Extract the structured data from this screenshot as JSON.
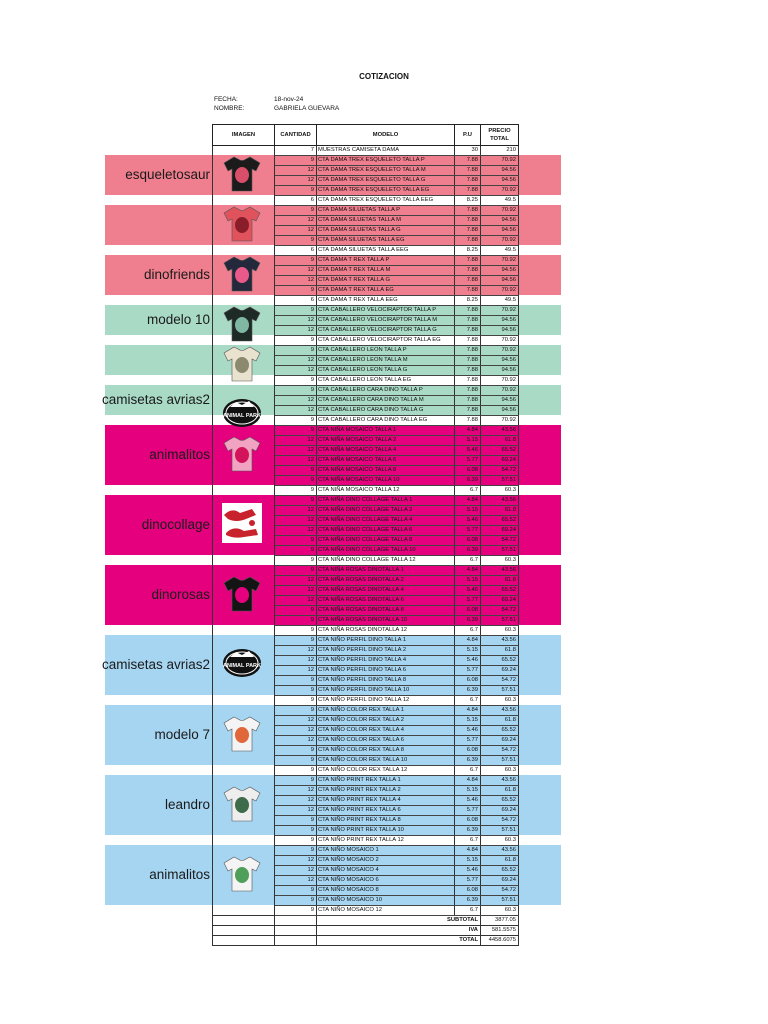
{
  "document": {
    "title": "COTIZACION",
    "fecha_label": "FECHA:",
    "fecha_value": "18-nov-24",
    "nombre_label": "NOMBRE:",
    "nombre_value": "GABRIELA GUEVARA"
  },
  "table": {
    "headers": [
      "IMAGEN",
      "CANTIDAD",
      "MODELO",
      "P.U",
      "PRECIO TOTAL"
    ],
    "rows": [
      {
        "qty": "7",
        "model": "MUESTRAS CAMISETA DAMA",
        "pu": "30",
        "total": "210"
      },
      {
        "qty": "9",
        "model": "CTA DAMA TREX ESQUELETO TALLA P",
        "pu": "7.88",
        "total": "70.92"
      },
      {
        "qty": "12",
        "model": "CTA DAMA TREX ESQUELETO TALLA M",
        "pu": "7.88",
        "total": "94.56"
      },
      {
        "qty": "12",
        "model": "CTA DAMA TREX ESQUELETO TALLA G",
        "pu": "7.88",
        "total": "94.56"
      },
      {
        "qty": "9",
        "model": "CTA DAMA TREX ESQUELETO TALLA EG",
        "pu": "7.88",
        "total": "70.92"
      },
      {
        "qty": "6",
        "model": "CTA DAMA TREX ESQUELETO TALLA EEG",
        "pu": "8.25",
        "total": "49.5"
      },
      {
        "qty": "9",
        "model": "CTA DAMA SILUETAS TALLA P",
        "pu": "7.88",
        "total": "70.92"
      },
      {
        "qty": "12",
        "model": "CTA DAMA SILUETAS TALLA M",
        "pu": "7.88",
        "total": "94.56"
      },
      {
        "qty": "12",
        "model": "CTA DAMA SILUETAS TALLA G",
        "pu": "7.88",
        "total": "94.56"
      },
      {
        "qty": "9",
        "model": "CTA DAMA SILUETAS TALLA EG",
        "pu": "7.88",
        "total": "70.92"
      },
      {
        "qty": "6",
        "model": "CTA DAMA SILUETAS TALLA EEG",
        "pu": "8.25",
        "total": "49.5"
      },
      {
        "qty": "9",
        "model": "CTA DAMA T REX TALLA P",
        "pu": "7.88",
        "total": "70.92"
      },
      {
        "qty": "12",
        "model": "CTA DAMA T REX TALLA M",
        "pu": "7.88",
        "total": "94.56"
      },
      {
        "qty": "12",
        "model": "CTA DAMA T REX TALLA G",
        "pu": "7.88",
        "total": "94.56"
      },
      {
        "qty": "9",
        "model": "CTA DAMA T REX TALLA EG",
        "pu": "7.88",
        "total": "70.92"
      },
      {
        "qty": "6",
        "model": "CTA DAMA T REX TALLA EEG",
        "pu": "8.25",
        "total": "49.5"
      },
      {
        "qty": "9",
        "model": "CTA CABALLERO VELOCIRAPTOR TALLA P",
        "pu": "7.88",
        "total": "70.92"
      },
      {
        "qty": "12",
        "model": "CTA CABALLERO VELOCIRAPTOR TALLA M",
        "pu": "7.88",
        "total": "94.56"
      },
      {
        "qty": "12",
        "model": "CTA CABALLERO VELOCIRAPTOR TALLA G",
        "pu": "7.88",
        "total": "94.56"
      },
      {
        "qty": "9",
        "model": "CTA CABALLERO VELOCIRAPTOR TALLA EG",
        "pu": "7.88",
        "total": "70.92"
      },
      {
        "qty": "9",
        "model": "CTA CABALLERO LEON TALLA P",
        "pu": "7.88",
        "total": "70.92"
      },
      {
        "qty": "12",
        "model": "CTA CABALLERO LEON TALLA M",
        "pu": "7.88",
        "total": "94.56"
      },
      {
        "qty": "12",
        "model": "CTA CABALLERO LEON TALLA G",
        "pu": "7.88",
        "total": "94.56"
      },
      {
        "qty": "9",
        "model": "CTA CABALLERO LEON TALLA EG",
        "pu": "7.88",
        "total": "70.92"
      },
      {
        "qty": "9",
        "model": "CTA CABALLERO CARA DINO TALLA P",
        "pu": "7.88",
        "total": "70.92"
      },
      {
        "qty": "12",
        "model": "CTA CABALLERO CARA DINO TALLA M",
        "pu": "7.88",
        "total": "94.56"
      },
      {
        "qty": "12",
        "model": "CTA CABALLERO CARA DINO TALLA G",
        "pu": "7.88",
        "total": "94.56"
      },
      {
        "qty": "9",
        "model": "CTA CABALLERO CARA DINO TALLA EG",
        "pu": "7.88",
        "total": "70.92"
      },
      {
        "qty": "9",
        "model": "CTA NIÑA MOSAICO TALLA 1",
        "pu": "4.84",
        "total": "43.56"
      },
      {
        "qty": "12",
        "model": "CTA NIÑA MOSAICO TALLA 2",
        "pu": "5.15",
        "total": "61.8"
      },
      {
        "qty": "12",
        "model": "CTA NIÑA MOSAICO TALLA 4",
        "pu": "5.46",
        "total": "65.52"
      },
      {
        "qty": "12",
        "model": "CTA NIÑA MOSAICO TALLA 6",
        "pu": "5.77",
        "total": "69.24"
      },
      {
        "qty": "9",
        "model": "CTA NIÑA MOSAICO TALLA 8",
        "pu": "6.08",
        "total": "54.72"
      },
      {
        "qty": "9",
        "model": "CTA NIÑA MOSAICO TALLA 10",
        "pu": "6.39",
        "total": "57.51"
      },
      {
        "qty": "9",
        "model": "CTA NIÑA MOSAICO TALLA 12",
        "pu": "6.7",
        "total": "60.3"
      },
      {
        "qty": "9",
        "model": "CTA NIÑA DINO COLLAGE TALLA 1",
        "pu": "4.84",
        "total": "43.56"
      },
      {
        "qty": "12",
        "model": "CTA NIÑA DINO COLLAGE TALLA 2",
        "pu": "5.15",
        "total": "61.8"
      },
      {
        "qty": "12",
        "model": "CTA NIÑA DINO COLLAGE TALLA 4",
        "pu": "5.46",
        "total": "65.52"
      },
      {
        "qty": "12",
        "model": "CTA NIÑA DINO COLLAGE TALLA 6",
        "pu": "5.77",
        "total": "69.24"
      },
      {
        "qty": "9",
        "model": "CTA NIÑA DINO COLLAGE TALLA 8",
        "pu": "6.08",
        "total": "54.72"
      },
      {
        "qty": "9",
        "model": "CTA NIÑA DINO COLLAGE TALLA 10",
        "pu": "6.39",
        "total": "57.51"
      },
      {
        "qty": "9",
        "model": "CTA NIÑA DINO COLLAGE TALLA 12",
        "pu": "6.7",
        "total": "60.3"
      },
      {
        "qty": "9",
        "model": "CTA NIÑA ROSAS DINOTALLA 1",
        "pu": "4.84",
        "total": "43.56"
      },
      {
        "qty": "12",
        "model": "CTA NIÑA ROSAS DINOTALLA 2",
        "pu": "5.15",
        "total": "61.8"
      },
      {
        "qty": "12",
        "model": "CTA NIÑA ROSAS DINOTALLA 4",
        "pu": "5.46",
        "total": "65.52"
      },
      {
        "qty": "12",
        "model": "CTA NIÑA ROSAS DINOTALLA 6",
        "pu": "5.77",
        "total": "69.24"
      },
      {
        "qty": "9",
        "model": "CTA NIÑA ROSAS DINOTALLA 8",
        "pu": "6.08",
        "total": "54.72"
      },
      {
        "qty": "9",
        "model": "CTA NIÑA ROSAS DINOTALLA 10",
        "pu": "6.39",
        "total": "57.51"
      },
      {
        "qty": "9",
        "model": "CTA NIÑA ROSAS DINOTALLA 12",
        "pu": "6.7",
        "total": "60.3"
      },
      {
        "qty": "9",
        "model": "CTA NIÑO PERFIL DINO TALLA 1",
        "pu": "4.84",
        "total": "43.56"
      },
      {
        "qty": "12",
        "model": "CTA NIÑO PERFIL DINO TALLA 2",
        "pu": "5.15",
        "total": "61.8"
      },
      {
        "qty": "12",
        "model": "CTA NIÑO PERFIL DINO TALLA 4",
        "pu": "5.46",
        "total": "65.52"
      },
      {
        "qty": "12",
        "model": "CTA NIÑO PERFIL DINO TALLA 6",
        "pu": "5.77",
        "total": "69.24"
      },
      {
        "qty": "9",
        "model": "CTA NIÑO PERFIL DINO TALLA 8",
        "pu": "6.08",
        "total": "54.72"
      },
      {
        "qty": "9",
        "model": "CTA NIÑO PERFIL DINO TALLA 10",
        "pu": "6.39",
        "total": "57.51"
      },
      {
        "qty": "9",
        "model": "CTA NIÑO PERFIL DINO TALLA 12",
        "pu": "6.7",
        "total": "60.3"
      },
      {
        "qty": "9",
        "model": "CTA NIÑO COLOR REX TALLA 1",
        "pu": "4.84",
        "total": "43.56"
      },
      {
        "qty": "12",
        "model": "CTA NIÑO COLOR REX TALLA 2",
        "pu": "5.15",
        "total": "61.8"
      },
      {
        "qty": "12",
        "model": "CTA NIÑO COLOR REX TALLA 4",
        "pu": "5.46",
        "total": "65.52"
      },
      {
        "qty": "12",
        "model": "CTA NIÑO COLOR REX TALLA 6",
        "pu": "5.77",
        "total": "69.24"
      },
      {
        "qty": "9",
        "model": "CTA NIÑO COLOR REX TALLA 8",
        "pu": "6.08",
        "total": "54.72"
      },
      {
        "qty": "9",
        "model": "CTA NIÑO COLOR REX TALLA 10",
        "pu": "6.39",
        "total": "57.51"
      },
      {
        "qty": "9",
        "model": "CTA NIÑO COLOR REX TALLA 12",
        "pu": "6.7",
        "total": "60.3"
      },
      {
        "qty": "9",
        "model": "CTA NIÑO PRINT REX TALLA 1",
        "pu": "4.84",
        "total": "43.56"
      },
      {
        "qty": "12",
        "model": "CTA NIÑO PRINT REX TALLA 2",
        "pu": "5.15",
        "total": "61.8"
      },
      {
        "qty": "12",
        "model": "CTA NIÑO PRINT REX TALLA 4",
        "pu": "5.46",
        "total": "65.52"
      },
      {
        "qty": "12",
        "model": "CTA NIÑO PRINT REX TALLA 6",
        "pu": "5.77",
        "total": "69.24"
      },
      {
        "qty": "9",
        "model": "CTA NIÑO PRINT REX TALLA 8",
        "pu": "6.08",
        "total": "54.72"
      },
      {
        "qty": "9",
        "model": "CTA NIÑO PRINT REX TALLA 10",
        "pu": "6.39",
        "total": "57.51"
      },
      {
        "qty": "9",
        "model": "CTA NIÑO PRINT REX TALLA 12",
        "pu": "6.7",
        "total": "60.3"
      },
      {
        "qty": "9",
        "model": "CTA NIÑO MOSAICO 1",
        "pu": "4.84",
        "total": "43.56"
      },
      {
        "qty": "12",
        "model": "CTA NIÑO MOSAICO 2",
        "pu": "5.15",
        "total": "61.8"
      },
      {
        "qty": "12",
        "model": "CTA NIÑO MOSAICO 4",
        "pu": "5.46",
        "total": "65.52"
      },
      {
        "qty": "12",
        "model": "CTA NIÑO MOSAICO 6",
        "pu": "5.77",
        "total": "69.24"
      },
      {
        "qty": "9",
        "model": "CTA NIÑO MOSAICO 8",
        "pu": "6.08",
        "total": "54.72"
      },
      {
        "qty": "9",
        "model": "CTA NIÑO MOSAICO 10",
        "pu": "6.39",
        "total": "57.51"
      },
      {
        "qty": "9",
        "model": "CTA NIÑO MOSAICO 12",
        "pu": "6.7",
        "total": "60.3"
      }
    ],
    "summary": [
      {
        "label": "SUBTOTAL",
        "value": "3877.05"
      },
      {
        "label": "IVA",
        "value": "581.5575"
      },
      {
        "label": "TOTAL",
        "value": "4458.6075"
      }
    ]
  },
  "annotations": [
    {
      "label": "esqueletosaur",
      "color": "#ef7f8e",
      "first_row": 1,
      "row_count": 4
    },
    {
      "label": "",
      "color": "#ef7f8e",
      "first_row": 6,
      "row_count": 4
    },
    {
      "label": "dinofriends",
      "color": "#ef7f8e",
      "first_row": 11,
      "row_count": 4
    },
    {
      "label": "modelo 10",
      "color": "#a9dac6",
      "first_row": 16,
      "row_count": 3
    },
    {
      "label": "",
      "color": "#a9dac6",
      "first_row": 20,
      "row_count": 3
    },
    {
      "label": "camisetas avrias2",
      "color": "#a9dac6",
      "first_row": 24,
      "row_count": 3
    },
    {
      "label": "animalitos",
      "color": "#e5007e",
      "first_row": 28,
      "row_count": 6
    },
    {
      "label": "dinocollage",
      "color": "#e5007e",
      "first_row": 35,
      "row_count": 6
    },
    {
      "label": "dinorosas",
      "color": "#e5007e",
      "first_row": 42,
      "row_count": 6
    },
    {
      "label": "camisetas avrias2",
      "color": "#a6d5f2",
      "first_row": 49,
      "row_count": 6
    },
    {
      "label": "modelo 7",
      "color": "#a6d5f2",
      "first_row": 56,
      "row_count": 6
    },
    {
      "label": "leandro",
      "color": "#a6d5f2",
      "first_row": 63,
      "row_count": 6
    },
    {
      "label": "animalitos",
      "color": "#a6d5f2",
      "first_row": 70,
      "row_count": 6
    }
  ],
  "thumbnails": [
    {
      "icon": "black-tshirt-skeleton-icon",
      "row": 1,
      "fill": "#1b1b1b",
      "print": "#d94f6a"
    },
    {
      "icon": "red-tshirt-silhouettes-icon",
      "row": 6,
      "fill": "#e0535d",
      "print": "#8a1d2a"
    },
    {
      "icon": "navy-tshirt-trex-icon",
      "row": 11,
      "fill": "#23283a",
      "print": "#e95a8a"
    },
    {
      "icon": "black-tshirt-velociraptor-icon",
      "row": 16,
      "fill": "#1e2a26",
      "print": "#7fb7a3"
    },
    {
      "icon": "cream-tshirt-lion-icon",
      "row": 20,
      "fill": "#e9e2cf",
      "print": "#8c8a6e"
    },
    {
      "icon": "animal-park-logo-icon",
      "row": 25,
      "fill": "#111111",
      "print": "#ffffff",
      "text": "ANIMAL PARK"
    },
    {
      "icon": "pink-tshirt-mosaic-icon",
      "row": 29,
      "fill": "#f2a3c2",
      "print": "#d4145a"
    },
    {
      "icon": "red-dino-collage-icon",
      "row": 36,
      "fill": "#ffffff",
      "print": "#c8232c"
    },
    {
      "icon": "black-tshirt-roses-icon",
      "row": 43,
      "fill": "#141414",
      "print": "#e5007e"
    },
    {
      "icon": "animal-park-logo-icon",
      "row": 50,
      "fill": "#111111",
      "print": "#ffffff",
      "text": "ANIMAL PARK"
    },
    {
      "icon": "white-tshirt-color-rex-icon",
      "row": 57,
      "fill": "#f4f4f4",
      "print": "#e0673a"
    },
    {
      "icon": "white-tshirt-print-rex-icon",
      "row": 64,
      "fill": "#eeeeee",
      "print": "#3e6b49"
    },
    {
      "icon": "white-tshirt-mosaic-icon",
      "row": 71,
      "fill": "#f4f4f4",
      "print": "#4f9e5a"
    }
  ]
}
